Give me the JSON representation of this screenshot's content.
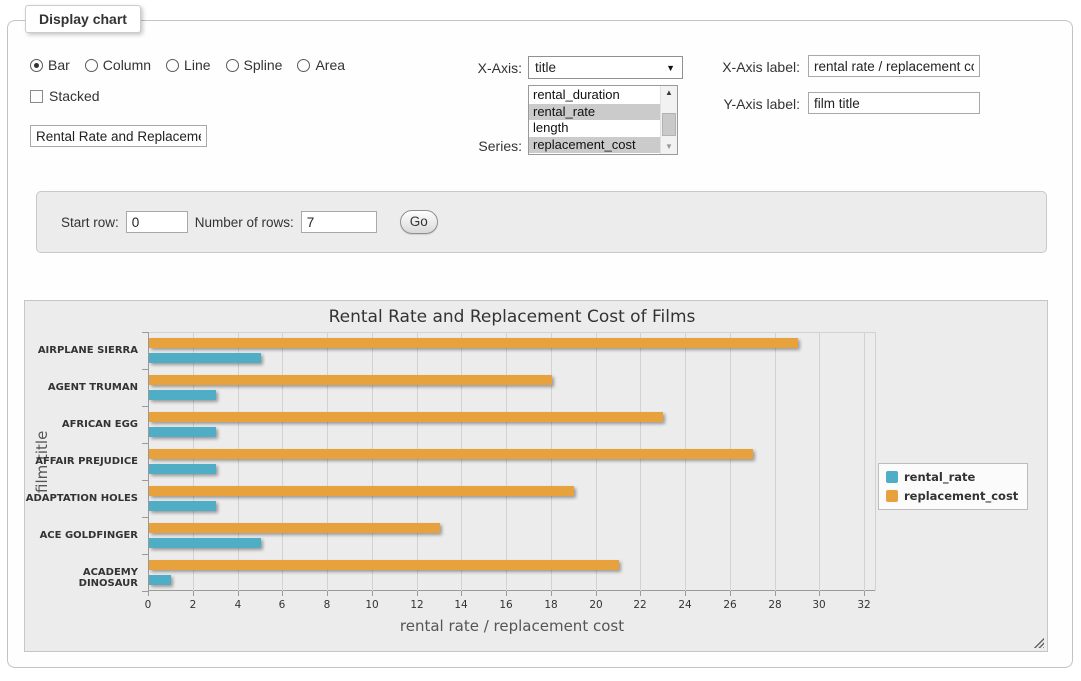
{
  "panel": {
    "legend": "Display chart"
  },
  "controls": {
    "chart_types": {
      "options": [
        "Bar",
        "Column",
        "Line",
        "Spline",
        "Area"
      ],
      "selected": "Bar"
    },
    "stacked": {
      "label": "Stacked",
      "checked": false
    },
    "chart_title_input": {
      "value": "Rental Rate and Replacement Cost of Films"
    },
    "x_axis_select": {
      "label": "X-Axis:",
      "value": "title"
    },
    "series_list": {
      "label": "Series:",
      "options": [
        "rental_duration",
        "rental_rate",
        "length",
        "replacement_cost"
      ],
      "selected": [
        "rental_rate",
        "replacement_cost"
      ]
    },
    "x_axis_label_input": {
      "label": "X-Axis label:",
      "value": "rental rate / replacement cost"
    },
    "y_axis_label_input": {
      "label": "Y-Axis label:",
      "value": "film title"
    }
  },
  "row_controls": {
    "start_row_label": "Start row:",
    "start_row_value": "0",
    "rows_label": "Number of rows:",
    "rows_value": "7",
    "go_label": "Go"
  },
  "chart_data": {
    "type": "bar",
    "orientation": "horizontal",
    "title": "Rental Rate and Replacement Cost of Films",
    "categories": [
      "AIRPLANE SIERRA",
      "AGENT TRUMAN",
      "AFRICAN EGG",
      "AFFAIR PREJUDICE",
      "ADAPTATION HOLES",
      "ACE GOLDFINGER",
      "ACADEMY DINOSAUR"
    ],
    "series": [
      {
        "name": "rental_rate",
        "color": "#4fadc5",
        "values": [
          4.99,
          2.99,
          2.99,
          2.99,
          2.99,
          4.99,
          0.99
        ]
      },
      {
        "name": "replacement_cost",
        "color": "#e8a23d",
        "values": [
          28.99,
          17.99,
          22.99,
          26.99,
          18.99,
          12.99,
          20.99
        ]
      }
    ],
    "xlabel": "rental rate / replacement cost",
    "ylabel": "film title",
    "xlim": [
      0,
      32
    ],
    "tick_step": 2,
    "grid": true,
    "legend_position": "right"
  }
}
